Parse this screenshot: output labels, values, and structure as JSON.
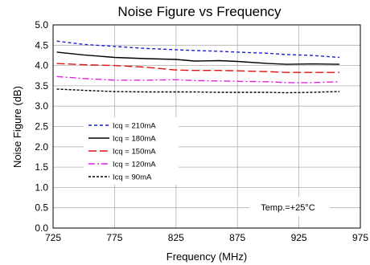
{
  "chart_data": {
    "type": "line",
    "title": "Noise Figure vs Frequency",
    "xlabel": "Frequency (MHz)",
    "ylabel": "Noise Figure (dB)",
    "xlim": [
      725,
      975
    ],
    "ylim": [
      0.0,
      5.0
    ],
    "xticks": [
      "725",
      "775",
      "825",
      "875",
      "925",
      "975"
    ],
    "yticks": [
      "0.0",
      "0.5",
      "1.0",
      "1.5",
      "2.0",
      "2.5",
      "3.0",
      "3.5",
      "4.0",
      "4.5",
      "5.0"
    ],
    "grid": true,
    "legend_position": "lower-left",
    "annotation": "Temp.=+25°C",
    "x": [
      728,
      750,
      775,
      800,
      825,
      840,
      860,
      875,
      900,
      915,
      935,
      958
    ],
    "series": [
      {
        "name": "Icq = 210mA",
        "color": "#1f1fd0",
        "dash": "4,3",
        "values": [
          4.6,
          4.52,
          4.47,
          4.42,
          4.39,
          4.37,
          4.35,
          4.33,
          4.3,
          4.27,
          4.25,
          4.2
        ]
      },
      {
        "name": "Icq = 180mA",
        "color": "#000000",
        "dash": "",
        "values": [
          4.33,
          4.26,
          4.2,
          4.17,
          4.15,
          4.11,
          4.12,
          4.1,
          4.05,
          4.03,
          4.04,
          4.03
        ]
      },
      {
        "name": "Icq = 150mA",
        "color": "#e01010",
        "dash": "10,4",
        "values": [
          4.05,
          4.02,
          4.0,
          3.96,
          3.89,
          3.88,
          3.88,
          3.87,
          3.85,
          3.83,
          3.83,
          3.83
        ]
      },
      {
        "name": "Icq = 120mA",
        "color": "#e020e0",
        "dash": "8,3,2,3",
        "values": [
          3.73,
          3.68,
          3.64,
          3.64,
          3.65,
          3.63,
          3.62,
          3.61,
          3.6,
          3.58,
          3.58,
          3.6
        ]
      },
      {
        "name": "Icq = 90mA",
        "color": "#000000",
        "dash": "3,2",
        "values": [
          3.42,
          3.39,
          3.36,
          3.35,
          3.35,
          3.35,
          3.34,
          3.34,
          3.34,
          3.33,
          3.34,
          3.36
        ]
      }
    ]
  }
}
